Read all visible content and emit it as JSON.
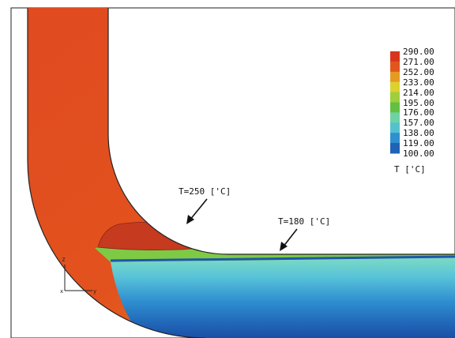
{
  "legend": {
    "values": [
      "290.00",
      "271.00",
      "252.00",
      "233.00",
      "214.00",
      "195.00",
      "176.00",
      "157.00",
      "138.00",
      "119.00",
      "100.00"
    ],
    "colors": [
      "#d9351c",
      "#e2551e",
      "#e59a22",
      "#dcd22e",
      "#9fcf3c",
      "#63c043",
      "#6ed3a4",
      "#54c1cf",
      "#2f8fd0",
      "#1f63b5",
      "#16459e"
    ],
    "title": "T ['C]"
  },
  "annotations": [
    {
      "text": "T=250 ['C]"
    },
    {
      "text": "T=180 ['C]"
    }
  ],
  "axes_triad": {
    "z_label": "z",
    "x_label": "x",
    "y_label": "y"
  }
}
